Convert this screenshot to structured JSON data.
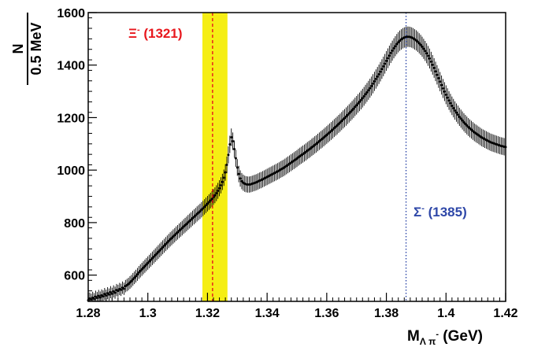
{
  "chart_data": {
    "type": "scatter",
    "title": "",
    "xlabel": {
      "main": "M",
      "sub": "Λ π",
      "sup": "-",
      "unit": " (GeV)"
    },
    "ylabel": {
      "numerator": "N",
      "denominator": "0.5 MeV"
    },
    "xlim": [
      1.28,
      1.42
    ],
    "ylim": [
      500,
      1600
    ],
    "xticks": [
      1.28,
      1.3,
      1.32,
      1.34,
      1.36,
      1.38,
      1.4,
      1.42
    ],
    "xtick_labels": [
      "1.28",
      "1.3",
      "1.32",
      "1.34",
      "1.36",
      "1.38",
      "1.4",
      "1.42"
    ],
    "yticks": [
      600,
      800,
      1000,
      1200,
      1400,
      1600
    ],
    "ytick_labels": [
      "600",
      "800",
      "1000",
      "1200",
      "1400",
      "1600"
    ],
    "grid": false,
    "series": [
      {
        "style": "points with error bars",
        "color": "#000000",
        "x_start": 1.28,
        "x_step": 0.0005,
        "values": [
          504,
          511,
          507,
          514,
          509,
          518,
          513,
          521,
          515,
          523,
          519,
          528,
          522,
          531,
          526,
          535,
          529,
          538,
          533,
          543,
          540,
          547,
          544,
          552,
          548,
          558,
          562,
          566,
          572,
          577,
          584,
          590,
          596,
          603,
          610,
          616,
          622,
          628,
          634,
          640,
          646,
          652,
          658,
          664,
          670,
          676,
          682,
          688,
          694,
          700,
          706,
          712,
          718,
          724,
          730,
          736,
          741,
          747,
          752,
          758,
          763,
          769,
          774,
          779,
          785,
          790,
          795,
          801,
          806,
          811,
          817,
          822,
          827,
          833,
          838,
          843,
          849,
          854,
          860,
          866,
          872,
          878,
          884,
          890,
          897,
          904,
          912,
          921,
          931,
          942,
          955,
          971,
          991,
          1020,
          1058,
          1098,
          1125,
          1110,
          1080,
          1045,
          1010,
          985,
          968,
          958,
          952,
          948,
          946,
          945,
          945,
          946,
          948,
          950,
          952,
          954,
          957,
          960,
          962,
          965,
          968,
          971,
          974,
          977,
          980,
          983,
          986,
          989,
          992,
          995,
          998,
          1002,
          1005,
          1008,
          1012,
          1016,
          1020,
          1024,
          1028,
          1032,
          1036,
          1040,
          1044,
          1049,
          1053,
          1057,
          1061,
          1065,
          1069,
          1074,
          1078,
          1082,
          1087,
          1091,
          1096,
          1100,
          1105,
          1110,
          1115,
          1119,
          1124,
          1129,
          1134,
          1139,
          1144,
          1149,
          1154,
          1160,
          1165,
          1170,
          1176,
          1181,
          1187,
          1193,
          1198,
          1204,
          1210,
          1216,
          1222,
          1228,
          1234,
          1241,
          1247,
          1254,
          1260,
          1267,
          1274,
          1281,
          1289,
          1296,
          1304,
          1312,
          1320,
          1329,
          1338,
          1347,
          1356,
          1365,
          1375,
          1385,
          1395,
          1405,
          1416,
          1426,
          1436,
          1446,
          1455,
          1464,
          1472,
          1480,
          1487,
          1493,
          1498,
          1502,
          1505,
          1507,
          1508,
          1508,
          1507,
          1505,
          1502,
          1498,
          1494,
          1489,
          1483,
          1477,
          1470,
          1462,
          1454,
          1445,
          1435,
          1425,
          1413,
          1401,
          1389,
          1376,
          1363,
          1350,
          1337,
          1324,
          1311,
          1299,
          1287,
          1276,
          1265,
          1255,
          1245,
          1236,
          1227,
          1219,
          1211,
          1203,
          1196,
          1189,
          1182,
          1176,
          1170,
          1164,
          1159,
          1154,
          1149,
          1144,
          1140,
          1136,
          1132,
          1128,
          1124,
          1121,
          1118,
          1115,
          1112,
          1109,
          1106,
          1104,
          1102,
          1100,
          1098,
          1096,
          1094,
          1092,
          1091,
          1089,
          1088,
          1087,
          1086,
          1085
        ]
      }
    ],
    "highlight_band": {
      "x_from": 1.3183,
      "x_to": 1.3267,
      "color": "#f5ee14"
    },
    "reference_lines": [
      {
        "x": 1.3217,
        "color": "#e8171d",
        "style": "dashed"
      },
      {
        "x": 1.3866,
        "color": "#2e47a8",
        "style": "dotted"
      }
    ],
    "annotations": [
      {
        "symbol": "Ξ",
        "sup": "-",
        "text": " (1321)",
        "color": "#e8171d"
      },
      {
        "symbol": "Σ",
        "sup": "-",
        "text": " (1385)",
        "color": "#2e47a8"
      }
    ]
  }
}
